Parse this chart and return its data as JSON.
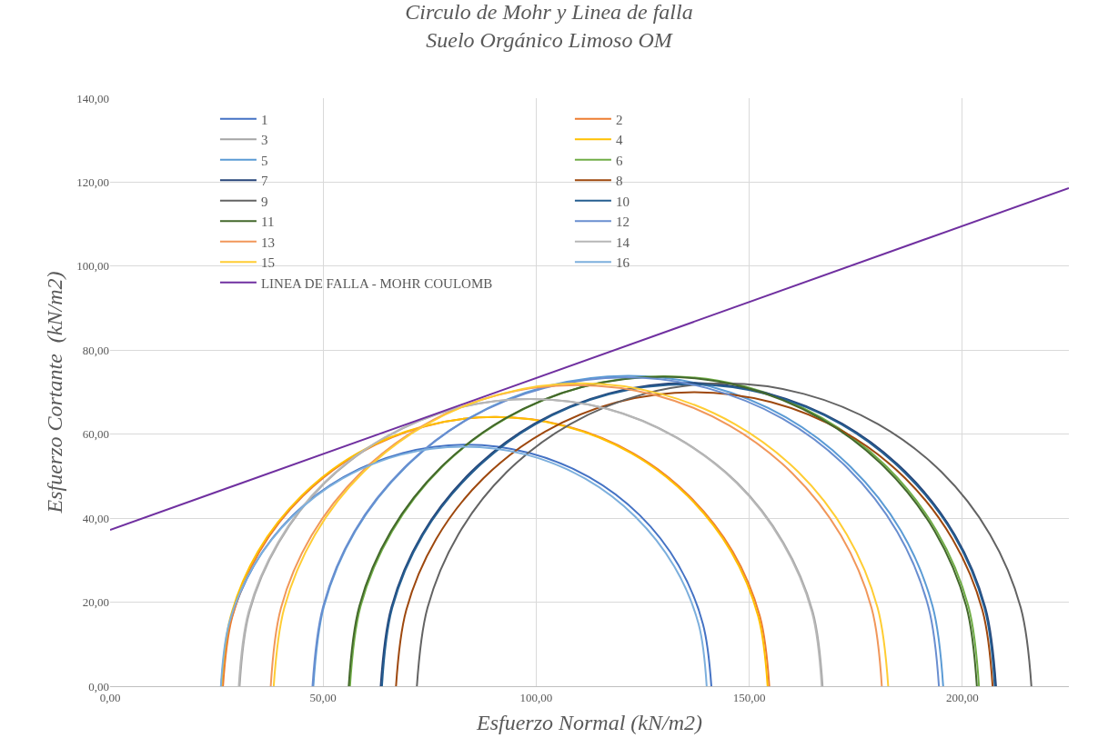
{
  "chart_data": {
    "type": "line",
    "title": "Circulo de Mohr y Linea de falla\nSuelo Orgánico Limoso OM",
    "xlabel": "Esfuerzo Normal (kN/m2)",
    "ylabel": "Esfuerzo Cortante  (kN/m2)",
    "xlim": [
      0,
      225
    ],
    "xticks": [
      {
        "value": 0,
        "label": "0,00"
      },
      {
        "value": 50,
        "label": "50,00"
      },
      {
        "value": 100,
        "label": "100,00"
      },
      {
        "value": 150,
        "label": "150,00"
      },
      {
        "value": 200,
        "label": "200,00"
      }
    ],
    "ylim": [
      0,
      140
    ],
    "yticks": [
      {
        "value": 0,
        "label": "0,00"
      },
      {
        "value": 20,
        "label": "20,00"
      },
      {
        "value": 40,
        "label": "40,00"
      },
      {
        "value": 60,
        "label": "60,00"
      },
      {
        "value": 80,
        "label": "80,00"
      },
      {
        "value": 100,
        "label": "100,00"
      },
      {
        "value": 120,
        "label": "120,00"
      },
      {
        "value": 140,
        "label": "140,00"
      }
    ],
    "grid": true,
    "legend": "top left",
    "marker": "none",
    "line_style": "solid",
    "series": [
      {
        "name": "1",
        "color": "#4472c4",
        "x": [
          26.1,
          28.1,
          33.8,
          42.9,
          54.8,
          68.7,
          83.6,
          98.5,
          112.4,
          124.3,
          133.4,
          139.1,
          141.1
        ],
        "values": [
          0,
          14.9,
          28.8,
          40.7,
          49.8,
          55.5,
          57.5,
          55.5,
          49.8,
          40.7,
          28.8,
          14.9,
          0
        ]
      },
      {
        "name": "2",
        "color": "#ed7d31",
        "x": [
          26.5,
          28.7,
          35.1,
          45.3,
          58.5,
          74.0,
          90.6,
          107.2,
          122.7,
          135.9,
          146.1,
          152.5,
          154.7
        ],
        "values": [
          0,
          16.6,
          32.1,
          45.3,
          55.5,
          61.9,
          64.1,
          61.9,
          55.5,
          45.3,
          32.1,
          16.6,
          0
        ]
      },
      {
        "name": "3",
        "color": "#a5a5a5",
        "x": [
          30.4,
          32.7,
          39.6,
          50.4,
          64.6,
          81.1,
          98.8,
          116.5,
          133.0,
          147.2,
          158.0,
          164.9,
          167.2
        ],
        "values": [
          0,
          17.7,
          34.2,
          48.4,
          59.2,
          66.1,
          68.4,
          66.1,
          59.2,
          48.4,
          34.2,
          17.7,
          0
        ]
      },
      {
        "name": "4",
        "color": "#ffc000",
        "x": [
          26.1,
          28.3,
          34.7,
          44.9,
          58.1,
          73.6,
          90.2,
          106.8,
          122.3,
          135.5,
          145.7,
          152.1,
          154.3
        ],
        "values": [
          0,
          16.6,
          32.1,
          45.3,
          55.5,
          61.9,
          64.1,
          61.9,
          55.5,
          45.3,
          32.1,
          16.6,
          0
        ]
      },
      {
        "name": "5",
        "color": "#5b9bd5",
        "x": [
          47.7,
          50.2,
          57.6,
          69.4,
          84.6,
          102.5,
          121.6,
          140.7,
          158.6,
          173.8,
          185.6,
          193.0,
          195.5
        ],
        "values": [
          0,
          19.1,
          37.0,
          52.2,
          64.0,
          71.4,
          73.9,
          71.4,
          64.0,
          52.2,
          37.0,
          19.1,
          0
        ]
      },
      {
        "name": "6",
        "color": "#70ad47",
        "x": [
          56.3,
          58.8,
          66.2,
          77.9,
          93.2,
          111.0,
          130.1,
          149.2,
          167.0,
          182.3,
          194.0,
          201.4,
          203.9
        ],
        "values": [
          0,
          19.1,
          36.9,
          52.2,
          63.9,
          71.3,
          73.8,
          71.3,
          63.9,
          52.2,
          36.9,
          19.1,
          0
        ]
      },
      {
        "name": "7",
        "color": "#264478",
        "x": [
          63.5,
          66.0,
          73.2,
          84.7,
          99.6,
          117.0,
          135.7,
          154.4,
          171.8,
          186.7,
          198.2,
          205.4,
          207.9
        ],
        "values": [
          0,
          18.7,
          36.1,
          51.0,
          62.5,
          69.7,
          72.2,
          69.7,
          62.5,
          51.0,
          36.1,
          18.7,
          0
        ]
      },
      {
        "name": "8",
        "color": "#9e480e",
        "x": [
          67.1,
          69.5,
          76.5,
          87.6,
          102.1,
          119.0,
          137.1,
          155.2,
          172.1,
          186.6,
          197.7,
          204.7,
          207.1
        ],
        "values": [
          0,
          18.1,
          35.0,
          49.5,
          60.6,
          67.6,
          70.0,
          67.6,
          60.6,
          49.5,
          35.0,
          18.1,
          0
        ]
      },
      {
        "name": "9",
        "color": "#636363",
        "x": [
          72.0,
          74.5,
          81.7,
          93.1,
          108.0,
          125.4,
          144.1,
          162.8,
          180.2,
          195.1,
          206.5,
          213.7,
          216.2
        ],
        "values": [
          0,
          18.7,
          36.1,
          51.0,
          62.4,
          69.6,
          72.1,
          69.6,
          62.4,
          51.0,
          36.1,
          18.7,
          0
        ]
      },
      {
        "name": "10",
        "color": "#255e91",
        "x": [
          63.8,
          66.2,
          73.4,
          84.9,
          99.7,
          117.1,
          135.7,
          154.3,
          171.7,
          186.5,
          198.0,
          205.2,
          207.6
        ],
        "values": [
          0,
          18.6,
          36.0,
          50.8,
          62.3,
          69.5,
          71.9,
          69.5,
          62.3,
          50.8,
          36.0,
          18.6,
          0
        ]
      },
      {
        "name": "11",
        "color": "#43682b",
        "x": [
          56.0,
          58.5,
          65.9,
          77.6,
          92.8,
          110.6,
          129.7,
          148.8,
          166.6,
          181.8,
          193.5,
          200.9,
          203.4
        ],
        "values": [
          0,
          19.1,
          36.9,
          52.1,
          63.8,
          71.2,
          73.7,
          71.2,
          63.8,
          52.1,
          36.9,
          19.1,
          0
        ]
      },
      {
        "name": "12",
        "color": "#698ed0",
        "x": [
          47.5,
          50.0,
          57.3,
          69.0,
          84.2,
          102.0,
          121.0,
          140.0,
          157.8,
          173.0,
          184.7,
          192.0,
          194.5
        ],
        "values": [
          0,
          19.0,
          36.8,
          52.0,
          63.7,
          71.0,
          73.5,
          71.0,
          63.7,
          52.0,
          36.8,
          19.0,
          0
        ]
      },
      {
        "name": "13",
        "color": "#f1975a",
        "x": [
          37.7,
          40.1,
          47.3,
          58.7,
          73.5,
          90.8,
          109.4,
          128.0,
          145.3,
          160.1,
          171.5,
          178.7,
          181.1
        ],
        "values": [
          0,
          18.6,
          35.9,
          50.7,
          62.1,
          69.3,
          71.7,
          69.3,
          62.1,
          50.7,
          35.9,
          18.6,
          0
        ]
      },
      {
        "name": "14",
        "color": "#b7b7b7",
        "x": [
          30.2,
          32.5,
          39.4,
          50.2,
          64.4,
          80.9,
          98.6,
          116.3,
          132.8,
          147.0,
          157.8,
          164.7,
          167.0
        ],
        "values": [
          0,
          17.7,
          34.2,
          48.4,
          59.2,
          66.1,
          68.4,
          66.1,
          59.2,
          48.4,
          34.2,
          17.7,
          0
        ]
      },
      {
        "name": "15",
        "color": "#ffcd33",
        "x": [
          38.4,
          40.9,
          48.1,
          59.5,
          74.4,
          91.8,
          110.5,
          129.2,
          146.6,
          161.5,
          172.9,
          180.1,
          182.6
        ],
        "values": [
          0,
          18.7,
          36.1,
          51.0,
          62.4,
          69.6,
          72.1,
          69.6,
          62.4,
          51.0,
          36.1,
          18.7,
          0
        ]
      },
      {
        "name": "16",
        "color": "#7cafdd",
        "x": [
          26.0,
          27.9,
          33.6,
          42.7,
          54.5,
          68.2,
          83.0,
          97.8,
          111.5,
          123.3,
          132.4,
          138.1,
          140.0
        ],
        "values": [
          0,
          14.8,
          28.5,
          40.3,
          49.4,
          55.1,
          57.0,
          55.1,
          49.4,
          40.3,
          28.5,
          14.8,
          0
        ]
      },
      {
        "name": "LINEA DE FALLA - MOHR COULOMB",
        "color": "#7030a0",
        "x": [
          0,
          225
        ],
        "values": [
          37.2,
          118.6
        ]
      }
    ]
  }
}
